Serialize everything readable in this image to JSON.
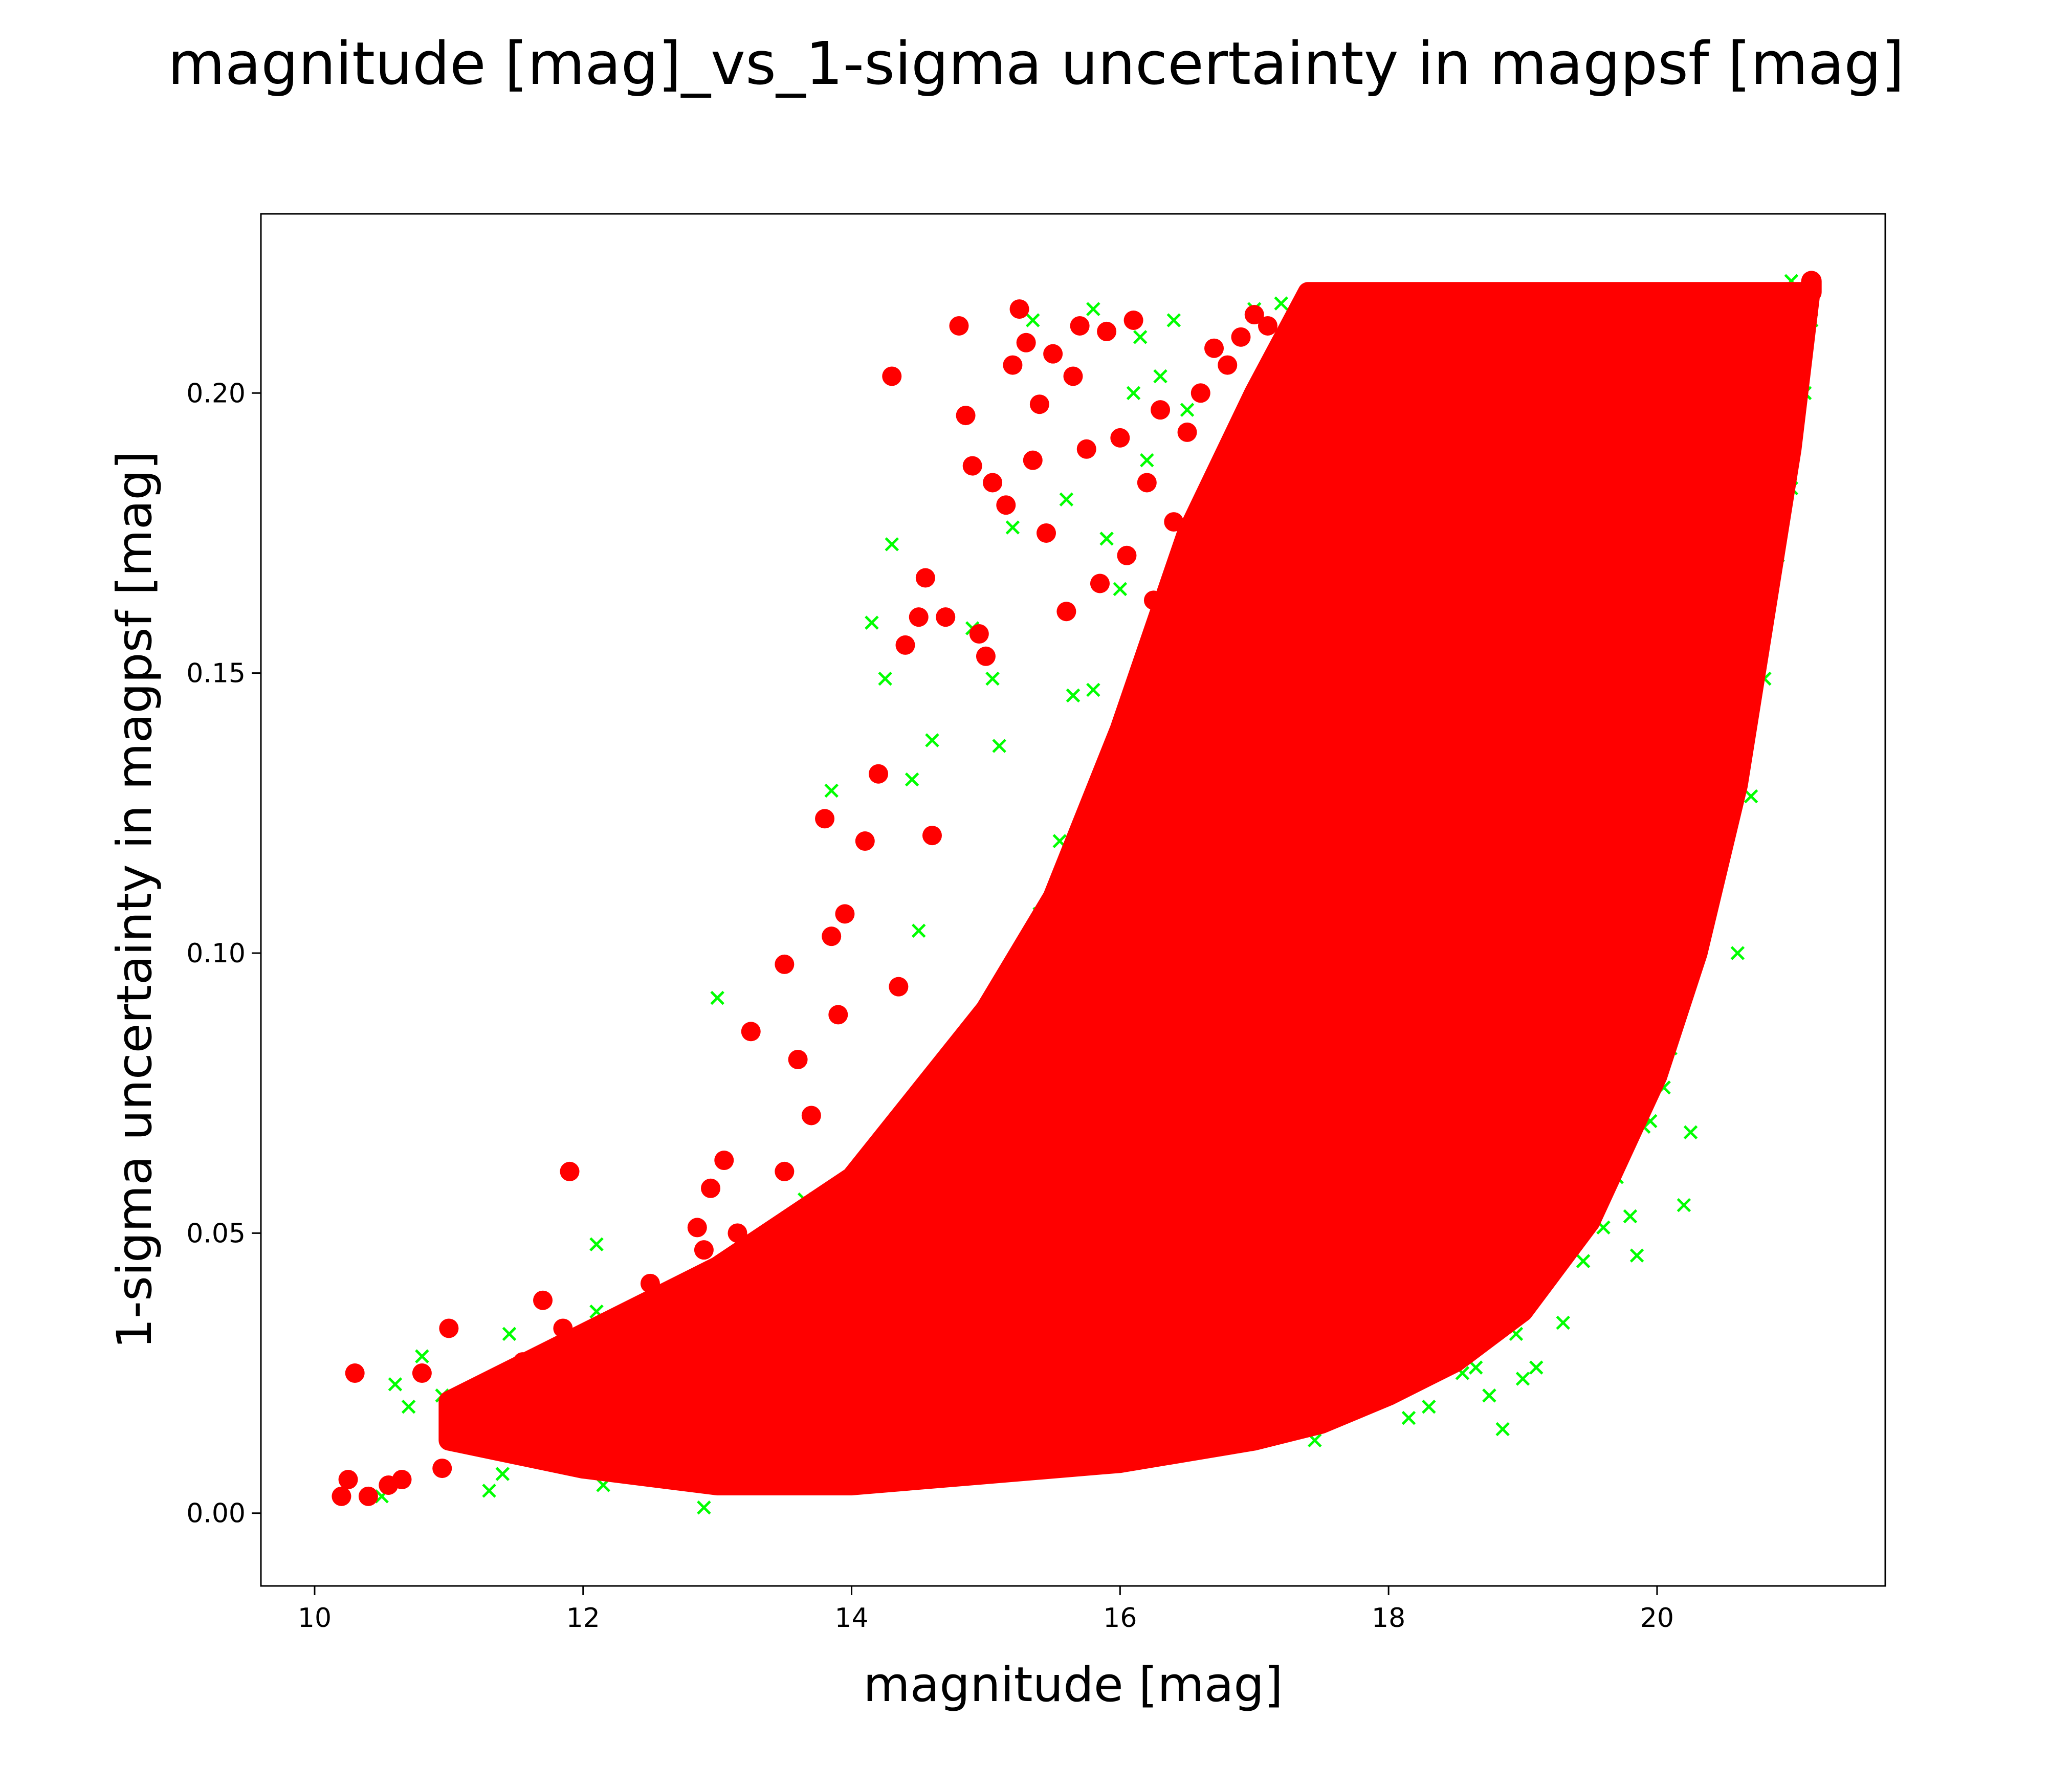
{
  "chart_data": {
    "type": "scatter",
    "title": "magnitude [mag]_vs_1-sigma uncertainty in magpsf [mag]",
    "xlabel": "magnitude [mag]",
    "ylabel": "1-sigma uncertainty in magpsf [mag]",
    "xlim": [
      9.6,
      21.7
    ],
    "ylim": [
      -0.013,
      0.232
    ],
    "xticks": [
      10,
      12,
      14,
      16,
      18,
      20
    ],
    "yticks": [
      0.0,
      0.05,
      0.1,
      0.15,
      0.2
    ],
    "ytick_labels": [
      "0.00",
      "0.05",
      "0.10",
      "0.15",
      "0.20"
    ],
    "grid": false,
    "legend": "none",
    "series": [
      {
        "marker": "x",
        "color": "#00ff00",
        "points": [
          [
            10.5,
            0.003
          ],
          [
            10.6,
            0.023
          ],
          [
            10.7,
            0.019
          ],
          [
            10.8,
            0.028
          ],
          [
            10.95,
            0.021
          ],
          [
            11.3,
            0.004
          ],
          [
            11.4,
            0.007
          ],
          [
            11.45,
            0.032
          ],
          [
            11.6,
            0.026
          ],
          [
            12.1,
            0.048
          ],
          [
            12.1,
            0.036
          ],
          [
            12.15,
            0.005
          ],
          [
            12.6,
            0.025
          ],
          [
            12.9,
            0.001
          ],
          [
            13.0,
            0.092
          ],
          [
            13.1,
            0.006
          ],
          [
            13.2,
            0.005
          ],
          [
            13.6,
            0.045
          ],
          [
            13.65,
            0.056
          ],
          [
            13.85,
            0.129
          ],
          [
            14.0,
            0.033
          ],
          [
            14.15,
            0.159
          ],
          [
            14.25,
            0.149
          ],
          [
            14.3,
            0.173
          ],
          [
            14.45,
            0.131
          ],
          [
            14.5,
            0.104
          ],
          [
            14.6,
            0.138
          ],
          [
            14.7,
            0.051
          ],
          [
            14.9,
            0.158
          ],
          [
            15.05,
            0.149
          ],
          [
            15.1,
            0.137
          ],
          [
            15.2,
            0.176
          ],
          [
            15.25,
            0.097
          ],
          [
            15.35,
            0.213
          ],
          [
            15.4,
            0.107
          ],
          [
            15.55,
            0.12
          ],
          [
            15.6,
            0.181
          ],
          [
            15.65,
            0.146
          ],
          [
            15.8,
            0.215
          ],
          [
            15.8,
            0.147
          ],
          [
            15.9,
            0.174
          ],
          [
            15.95,
            0.113
          ],
          [
            16.0,
            0.165
          ],
          [
            16.1,
            0.2
          ],
          [
            16.15,
            0.21
          ],
          [
            16.2,
            0.188
          ],
          [
            16.3,
            0.203
          ],
          [
            16.4,
            0.213
          ],
          [
            16.5,
            0.197
          ],
          [
            16.55,
            0.178
          ],
          [
            16.7,
            0.159
          ],
          [
            16.8,
            0.205
          ],
          [
            16.9,
            0.21
          ],
          [
            17.0,
            0.215
          ],
          [
            17.1,
            0.2
          ],
          [
            17.2,
            0.216
          ],
          [
            17.3,
            0.208
          ],
          [
            17.45,
            0.013
          ],
          [
            17.6,
            0.02
          ],
          [
            18.15,
            0.017
          ],
          [
            18.3,
            0.019
          ],
          [
            18.55,
            0.025
          ],
          [
            18.65,
            0.026
          ],
          [
            18.75,
            0.021
          ],
          [
            18.85,
            0.015
          ],
          [
            19.0,
            0.024
          ],
          [
            19.1,
            0.026
          ],
          [
            19.3,
            0.034
          ],
          [
            19.45,
            0.045
          ],
          [
            19.6,
            0.051
          ],
          [
            19.7,
            0.06
          ],
          [
            19.75,
            0.068
          ],
          [
            19.8,
            0.053
          ],
          [
            19.85,
            0.046
          ],
          [
            19.95,
            0.07
          ],
          [
            20.05,
            0.076
          ],
          [
            20.1,
            0.083
          ],
          [
            20.15,
            0.094
          ],
          [
            20.2,
            0.055
          ],
          [
            20.25,
            0.068
          ],
          [
            20.4,
            0.117
          ],
          [
            20.5,
            0.124
          ],
          [
            20.6,
            0.131
          ],
          [
            20.7,
            0.128
          ],
          [
            20.8,
            0.149
          ],
          [
            20.85,
            0.165
          ],
          [
            20.9,
            0.171
          ],
          [
            21.0,
            0.183
          ],
          [
            21.05,
            0.197
          ],
          [
            21.1,
            0.21
          ],
          [
            21.1,
            0.2
          ],
          [
            21.15,
            0.213
          ],
          [
            21.0,
            0.22
          ],
          [
            20.9,
            0.218
          ],
          [
            20.0,
            0.078
          ],
          [
            19.2,
            0.048
          ],
          [
            19.9,
            0.069
          ],
          [
            18.95,
            0.032
          ],
          [
            20.6,
            0.1
          ]
        ]
      },
      {
        "marker": "o",
        "color": "#ff0000",
        "points": [
          [
            10.2,
            0.003
          ],
          [
            10.25,
            0.006
          ],
          [
            10.3,
            0.025
          ],
          [
            10.4,
            0.003
          ],
          [
            10.55,
            0.005
          ],
          [
            10.65,
            0.006
          ],
          [
            10.8,
            0.025
          ],
          [
            10.95,
            0.008
          ],
          [
            11.0,
            0.033
          ],
          [
            11.1,
            0.017
          ],
          [
            11.2,
            0.02
          ],
          [
            11.3,
            0.014
          ],
          [
            11.55,
            0.027
          ],
          [
            11.7,
            0.038
          ],
          [
            11.85,
            0.033
          ],
          [
            11.9,
            0.061
          ],
          [
            12.0,
            0.022
          ],
          [
            12.5,
            0.041
          ],
          [
            12.85,
            0.051
          ],
          [
            12.9,
            0.047
          ],
          [
            12.95,
            0.058
          ],
          [
            13.05,
            0.063
          ],
          [
            13.15,
            0.05
          ],
          [
            13.25,
            0.086
          ],
          [
            13.4,
            0.048
          ],
          [
            13.5,
            0.061
          ],
          [
            13.5,
            0.098
          ],
          [
            13.6,
            0.081
          ],
          [
            13.7,
            0.071
          ],
          [
            13.8,
            0.124
          ],
          [
            13.85,
            0.103
          ],
          [
            13.9,
            0.089
          ],
          [
            13.95,
            0.107
          ],
          [
            14.05,
            0.06
          ],
          [
            14.1,
            0.12
          ],
          [
            14.2,
            0.132
          ],
          [
            14.3,
            0.203
          ],
          [
            14.35,
            0.094
          ],
          [
            14.4,
            0.155
          ],
          [
            14.5,
            0.16
          ],
          [
            14.55,
            0.167
          ],
          [
            14.6,
            0.121
          ],
          [
            14.7,
            0.16
          ],
          [
            14.8,
            0.212
          ],
          [
            14.85,
            0.196
          ],
          [
            14.9,
            0.187
          ],
          [
            14.95,
            0.157
          ],
          [
            15.0,
            0.153
          ],
          [
            15.05,
            0.184
          ],
          [
            15.15,
            0.18
          ],
          [
            15.2,
            0.205
          ],
          [
            15.25,
            0.215
          ],
          [
            15.3,
            0.209
          ],
          [
            15.35,
            0.188
          ],
          [
            15.4,
            0.198
          ],
          [
            15.45,
            0.175
          ],
          [
            15.5,
            0.207
          ],
          [
            15.6,
            0.161
          ],
          [
            15.65,
            0.203
          ],
          [
            15.7,
            0.212
          ],
          [
            15.75,
            0.19
          ],
          [
            15.85,
            0.166
          ],
          [
            15.9,
            0.211
          ],
          [
            16.0,
            0.192
          ],
          [
            16.05,
            0.171
          ],
          [
            16.1,
            0.213
          ],
          [
            16.2,
            0.184
          ],
          [
            16.25,
            0.163
          ],
          [
            16.3,
            0.197
          ],
          [
            16.4,
            0.177
          ],
          [
            16.5,
            0.193
          ],
          [
            16.6,
            0.2
          ],
          [
            16.7,
            0.208
          ],
          [
            16.8,
            0.205
          ],
          [
            16.9,
            0.21
          ],
          [
            17.0,
            0.214
          ],
          [
            17.1,
            0.212
          ],
          [
            17.2,
            0.209
          ]
        ],
        "dense_band": {
          "lower": [
            [
              11.0,
              0.013
            ],
            [
              12.0,
              0.008
            ],
            [
              13.0,
              0.005
            ],
            [
              14.0,
              0.005
            ],
            [
              15.0,
              0.007
            ],
            [
              16.0,
              0.009
            ],
            [
              17.0,
              0.013
            ],
            [
              17.5,
              0.016
            ],
            [
              18.0,
              0.021
            ],
            [
              18.5,
              0.027
            ],
            [
              19.0,
              0.036
            ],
            [
              19.5,
              0.052
            ],
            [
              20.0,
              0.078
            ],
            [
              20.3,
              0.1
            ],
            [
              20.6,
              0.13
            ],
            [
              20.8,
              0.16
            ],
            [
              21.0,
              0.19
            ],
            [
              21.1,
              0.21
            ],
            [
              21.15,
              0.22
            ]
          ],
          "upper": [
            [
              11.0,
              0.02
            ],
            [
              12.0,
              0.032
            ],
            [
              13.0,
              0.044
            ],
            [
              14.0,
              0.06
            ],
            [
              14.5,
              0.075
            ],
            [
              15.0,
              0.09
            ],
            [
              15.5,
              0.11
            ],
            [
              16.0,
              0.14
            ],
            [
              16.5,
              0.175
            ],
            [
              17.0,
              0.2
            ],
            [
              17.4,
              0.218
            ],
            [
              21.15,
              0.218
            ]
          ]
        }
      }
    ]
  }
}
